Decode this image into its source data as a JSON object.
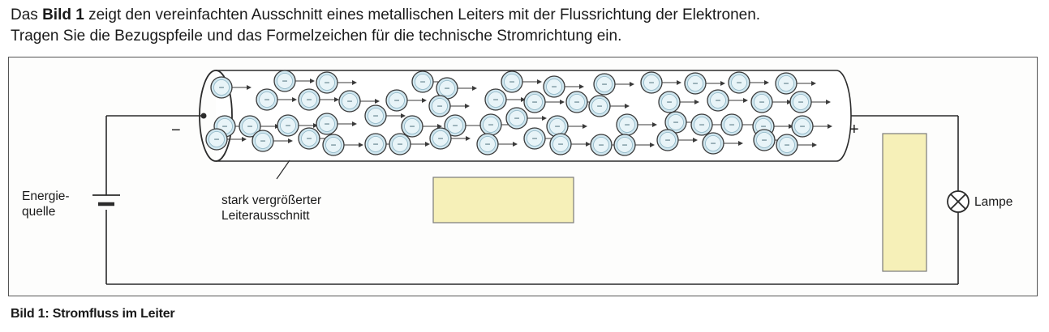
{
  "task": {
    "line1_pre": "Das ",
    "line1_bold": "Bild 1",
    "line1_post": " zeigt den vereinfachten Ausschnitt eines metallischen Leiters mit der Flussrichtung der Elektronen.",
    "line2": "Tragen Sie die Bezugspfeile und das Formelzeichen für die technische Stromrichtung ein."
  },
  "diagram": {
    "source_label_1": "Energie-",
    "source_label_2": "quelle",
    "conductor_label_1": "stark vergrößerter",
    "conductor_label_2": "Leiterausschnitt",
    "lamp_label": "Lampe",
    "minus_sign": "−",
    "plus_sign": "+",
    "electron_sign": "−",
    "colors": {
      "wire": "#2b2b2b",
      "electron_fill": "#cfe6ef",
      "electron_stroke": "#3a3a3a",
      "answer_box_fill": "#f6f0b8",
      "answer_box_stroke": "#7a7a7a"
    },
    "answer_boxes": [
      "current-symbol-box",
      "lamp-arrow-box"
    ]
  },
  "caption": "Bild 1: Stromfluss im Leiter"
}
